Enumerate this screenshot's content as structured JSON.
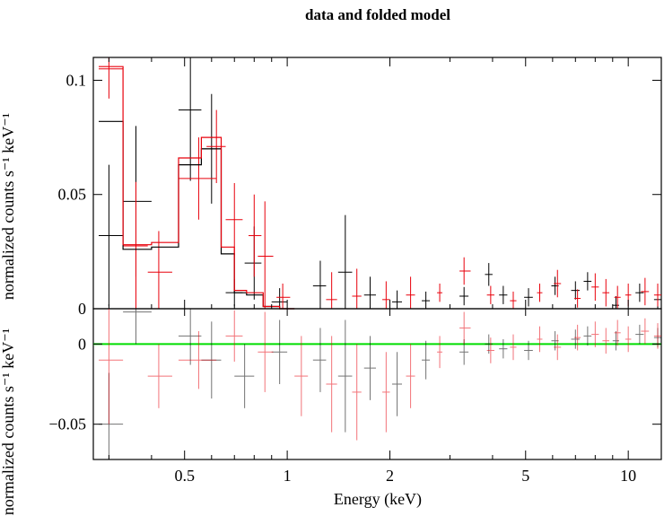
{
  "chart_data": {
    "type": "scatter",
    "title": "data and folded model",
    "xlabel": "Energy (keV)",
    "ylabel": "normalized counts s⁻¹ keV⁻¹",
    "xscale": "log",
    "xlim": [
      0.27,
      12.5
    ],
    "x_ticks": [
      0.5,
      1,
      2,
      5,
      10
    ],
    "x_tick_labels": [
      "0.5",
      "1",
      "2",
      "5",
      "10"
    ],
    "grid": false,
    "colors": {
      "black_spectrum": "#000000",
      "red_spectrum": "#e8000b",
      "residual_zero_line": "#00dd00",
      "background": "#ffffff"
    },
    "panels": [
      {
        "name": "spectrum",
        "ylim": [
          0,
          0.11
        ],
        "y_ticks": [
          0,
          0.05,
          0.1
        ],
        "y_tick_labels": [
          "0",
          "0.05",
          "0.1"
        ],
        "series": [
          {
            "kind": "data",
            "color": "black",
            "points": [
              {
                "x": 0.3,
                "x_lo": 0.28,
                "x_hi": 0.33,
                "y": 0.032,
                "yerr": 0.031
              },
              {
                "x": 0.36,
                "x_lo": 0.33,
                "x_hi": 0.4,
                "y": 0.047,
                "yerr": 0.033
              },
              {
                "x": 0.52,
                "x_lo": 0.48,
                "x_hi": 0.56,
                "y": 0.087,
                "yerr": 0.031
              },
              {
                "x": 0.6,
                "x_lo": 0.56,
                "x_hi": 0.64,
                "y": 0.07,
                "yerr": 0.024
              },
              {
                "x": 0.7,
                "x_lo": 0.66,
                "x_hi": 0.74,
                "y": 0.007,
                "yerr": 0.006
              },
              {
                "x": 0.8,
                "x_lo": 0.75,
                "x_hi": 0.84,
                "y": 0.02,
                "yerr": 0.016
              },
              {
                "x": 0.95,
                "x_lo": 0.9,
                "x_hi": 1.0,
                "y": 0.003,
                "yerr": 0.006
              },
              {
                "x": 1.25,
                "x_lo": 1.19,
                "x_hi": 1.3,
                "y": 0.01,
                "yerr": 0.011
              },
              {
                "x": 1.48,
                "x_lo": 1.41,
                "x_hi": 1.55,
                "y": 0.016,
                "yerr": 0.025
              },
              {
                "x": 1.75,
                "x_lo": 1.68,
                "x_hi": 1.82,
                "y": 0.006,
                "yerr": 0.008
              },
              {
                "x": 2.1,
                "x_lo": 2.03,
                "x_hi": 2.17,
                "y": 0.003,
                "yerr": 0.005
              },
              {
                "x": 2.55,
                "x_lo": 2.48,
                "x_hi": 2.62,
                "y": 0.0035,
                "yerr": 0.004
              },
              {
                "x": 3.3,
                "x_lo": 3.2,
                "x_hi": 3.4,
                "y": 0.0055,
                "yerr": 0.004
              },
              {
                "x": 3.9,
                "x_lo": 3.8,
                "x_hi": 4.0,
                "y": 0.015,
                "yerr": 0.005
              },
              {
                "x": 4.3,
                "x_lo": 4.18,
                "x_hi": 4.42,
                "y": 0.006,
                "yerr": 0.004
              },
              {
                "x": 5.1,
                "x_lo": 4.95,
                "x_hi": 5.25,
                "y": 0.005,
                "yerr": 0.004
              },
              {
                "x": 6.1,
                "x_lo": 5.95,
                "x_hi": 6.25,
                "y": 0.01,
                "yerr": 0.004
              },
              {
                "x": 7.0,
                "x_lo": 6.8,
                "x_hi": 7.2,
                "y": 0.008,
                "yerr": 0.004
              },
              {
                "x": 7.6,
                "x_lo": 7.4,
                "x_hi": 7.8,
                "y": 0.012,
                "yerr": 0.004
              },
              {
                "x": 9.2,
                "x_lo": 9.0,
                "x_hi": 9.4,
                "y": 0.0015,
                "yerr": 0.004
              },
              {
                "x": 10.8,
                "x_lo": 10.5,
                "x_hi": 11.1,
                "y": 0.007,
                "yerr": 0.004
              },
              {
                "x": 12.2,
                "x_lo": 11.9,
                "x_hi": 12.5,
                "y": 0.004,
                "yerr": 0.004
              }
            ]
          },
          {
            "kind": "data",
            "color": "red",
            "points": [
              {
                "x": 0.3,
                "x_lo": 0.28,
                "x_hi": 0.33,
                "y": 0.105,
                "yerr": 0.013
              },
              {
                "x": 0.36,
                "x_lo": 0.33,
                "x_hi": 0.39,
                "y": 0.0275,
                "yerr": 0.028
              },
              {
                "x": 0.42,
                "x_lo": 0.39,
                "x_hi": 0.46,
                "y": 0.016,
                "yerr": 0.018
              },
              {
                "x": 0.55,
                "x_lo": 0.48,
                "x_hi": 0.62,
                "y": 0.057,
                "yerr": 0.018
              },
              {
                "x": 0.62,
                "x_lo": 0.58,
                "x_hi": 0.66,
                "y": 0.071,
                "yerr": 0.016
              },
              {
                "x": 0.7,
                "x_lo": 0.66,
                "x_hi": 0.74,
                "y": 0.039,
                "yerr": 0.016
              },
              {
                "x": 0.8,
                "x_lo": 0.77,
                "x_hi": 0.84,
                "y": 0.032,
                "yerr": 0.018
              },
              {
                "x": 0.86,
                "x_lo": 0.82,
                "x_hi": 0.91,
                "y": 0.023,
                "yerr": 0.024
              },
              {
                "x": 0.97,
                "x_lo": 0.93,
                "x_hi": 1.02,
                "y": 0.005,
                "yerr": 0.006
              },
              {
                "x": 1.35,
                "x_lo": 1.3,
                "x_hi": 1.4,
                "y": 0.004,
                "yerr": 0.012
              },
              {
                "x": 1.6,
                "x_lo": 1.55,
                "x_hi": 1.65,
                "y": 0.0055,
                "yerr": 0.012
              },
              {
                "x": 1.95,
                "x_lo": 1.9,
                "x_hi": 2.0,
                "y": 0.004,
                "yerr": 0.008
              },
              {
                "x": 2.3,
                "x_lo": 2.23,
                "x_hi": 2.37,
                "y": 0.006,
                "yerr": 0.008
              },
              {
                "x": 2.8,
                "x_lo": 2.75,
                "x_hi": 2.85,
                "y": 0.007,
                "yerr": 0.004
              },
              {
                "x": 3.3,
                "x_lo": 3.2,
                "x_hi": 3.45,
                "y": 0.0165,
                "yerr": 0.006
              },
              {
                "x": 3.95,
                "x_lo": 3.85,
                "x_hi": 4.05,
                "y": 0.006,
                "yerr": 0.004
              },
              {
                "x": 4.6,
                "x_lo": 4.5,
                "x_hi": 4.7,
                "y": 0.0035,
                "yerr": 0.004
              },
              {
                "x": 5.5,
                "x_lo": 5.4,
                "x_hi": 5.6,
                "y": 0.007,
                "yerr": 0.004
              },
              {
                "x": 6.2,
                "x_lo": 6.05,
                "x_hi": 6.35,
                "y": 0.011,
                "yerr": 0.006
              },
              {
                "x": 7.1,
                "x_lo": 6.95,
                "x_hi": 7.25,
                "y": 0.0045,
                "yerr": 0.004
              },
              {
                "x": 8.0,
                "x_lo": 7.8,
                "x_hi": 8.2,
                "y": 0.0095,
                "yerr": 0.006
              },
              {
                "x": 8.6,
                "x_lo": 8.4,
                "x_hi": 8.8,
                "y": 0.007,
                "yerr": 0.006
              },
              {
                "x": 9.3,
                "x_lo": 9.1,
                "x_hi": 9.5,
                "y": 0.005,
                "yerr": 0.005
              },
              {
                "x": 10.0,
                "x_lo": 9.8,
                "x_hi": 10.2,
                "y": 0.006,
                "yerr": 0.005
              },
              {
                "x": 11.2,
                "x_lo": 10.9,
                "x_hi": 11.5,
                "y": 0.0075,
                "yerr": 0.006
              },
              {
                "x": 12.2,
                "x_lo": 11.9,
                "x_hi": 12.5,
                "y": 0.006,
                "yerr": 0.005
              }
            ]
          },
          {
            "kind": "model",
            "color": "black",
            "edges": [
              0.28,
              0.33,
              0.4,
              0.48,
              0.56,
              0.64,
              0.7,
              0.76,
              0.85,
              0.95,
              1.05
            ],
            "values": [
              0.082,
              0.026,
              0.027,
              0.063,
              0.07,
              0.024,
              0.007,
              0.006,
              0.001,
              0.0
            ]
          },
          {
            "kind": "model",
            "color": "red",
            "edges": [
              0.28,
              0.33,
              0.4,
              0.48,
              0.56,
              0.64,
              0.7,
              0.76,
              0.85,
              0.95,
              1.05
            ],
            "values": [
              0.106,
              0.028,
              0.029,
              0.066,
              0.075,
              0.027,
              0.008,
              0.007,
              0.001,
              0.0
            ]
          }
        ]
      },
      {
        "name": "residuals",
        "ylim": [
          -0.072,
          0.022
        ],
        "y_ticks": [
          -0.05,
          0
        ],
        "y_tick_labels": [
          "−0.05",
          "0"
        ],
        "zero_line": 0,
        "series": [
          {
            "kind": "data",
            "color": "black",
            "points": [
              {
                "x": 0.3,
                "x_lo": 0.28,
                "x_hi": 0.33,
                "y": -0.05,
                "yerr": 0.032
              },
              {
                "x": 0.36,
                "x_lo": 0.33,
                "x_hi": 0.4,
                "y": 0.02,
                "yerr": 0.02
              },
              {
                "x": 0.52,
                "x_lo": 0.48,
                "x_hi": 0.56,
                "y": 0.005,
                "yerr": 0.018
              },
              {
                "x": 0.6,
                "x_lo": 0.56,
                "x_hi": 0.64,
                "y": -0.01,
                "yerr": 0.024
              },
              {
                "x": 0.75,
                "x_lo": 0.7,
                "x_hi": 0.8,
                "y": -0.02,
                "yerr": 0.02
              },
              {
                "x": 0.95,
                "x_lo": 0.9,
                "x_hi": 1.0,
                "y": -0.005,
                "yerr": 0.02
              },
              {
                "x": 1.25,
                "x_lo": 1.19,
                "x_hi": 1.3,
                "y": -0.01,
                "yerr": 0.02
              },
              {
                "x": 1.48,
                "x_lo": 1.41,
                "x_hi": 1.55,
                "y": -0.02,
                "yerr": 0.035
              },
              {
                "x": 1.75,
                "x_lo": 1.68,
                "x_hi": 1.82,
                "y": -0.015,
                "yerr": 0.02
              },
              {
                "x": 2.1,
                "x_lo": 2.03,
                "x_hi": 2.17,
                "y": -0.025,
                "yerr": 0.02
              },
              {
                "x": 2.55,
                "x_lo": 2.48,
                "x_hi": 2.62,
                "y": -0.01,
                "yerr": 0.012
              },
              {
                "x": 3.3,
                "x_lo": 3.2,
                "x_hi": 3.4,
                "y": -0.005,
                "yerr": 0.008
              },
              {
                "x": 3.9,
                "x_lo": 3.8,
                "x_hi": 4.0,
                "y": 0.0,
                "yerr": 0.006
              },
              {
                "x": 4.3,
                "x_lo": 4.18,
                "x_hi": 4.42,
                "y": -0.003,
                "yerr": 0.006
              },
              {
                "x": 5.1,
                "x_lo": 4.95,
                "x_hi": 5.25,
                "y": -0.004,
                "yerr": 0.006
              },
              {
                "x": 6.1,
                "x_lo": 5.95,
                "x_hi": 6.25,
                "y": 0.002,
                "yerr": 0.006
              },
              {
                "x": 7.0,
                "x_lo": 6.8,
                "x_hi": 7.2,
                "y": 0.003,
                "yerr": 0.006
              },
              {
                "x": 7.6,
                "x_lo": 7.4,
                "x_hi": 7.8,
                "y": 0.005,
                "yerr": 0.006
              },
              {
                "x": 9.2,
                "x_lo": 9.0,
                "x_hi": 9.4,
                "y": 0.002,
                "yerr": 0.006
              },
              {
                "x": 10.8,
                "x_lo": 10.5,
                "x_hi": 11.1,
                "y": 0.006,
                "yerr": 0.006
              },
              {
                "x": 12.2,
                "x_lo": 11.9,
                "x_hi": 12.5,
                "y": 0.004,
                "yerr": 0.006
              }
            ]
          },
          {
            "kind": "data",
            "color": "red",
            "points": [
              {
                "x": 0.3,
                "x_lo": 0.28,
                "x_hi": 0.33,
                "y": -0.01,
                "yerr": 0.04
              },
              {
                "x": 0.42,
                "x_lo": 0.39,
                "x_hi": 0.46,
                "y": -0.02,
                "yerr": 0.02
              },
              {
                "x": 0.55,
                "x_lo": 0.48,
                "x_hi": 0.62,
                "y": -0.01,
                "yerr": 0.018
              },
              {
                "x": 0.7,
                "x_lo": 0.66,
                "x_hi": 0.74,
                "y": 0.005,
                "yerr": 0.016
              },
              {
                "x": 0.86,
                "x_lo": 0.82,
                "x_hi": 0.91,
                "y": -0.005,
                "yerr": 0.025
              },
              {
                "x": 1.1,
                "x_lo": 1.05,
                "x_hi": 1.15,
                "y": -0.02,
                "yerr": 0.025
              },
              {
                "x": 1.35,
                "x_lo": 1.3,
                "x_hi": 1.4,
                "y": -0.025,
                "yerr": 0.03
              },
              {
                "x": 1.6,
                "x_lo": 1.55,
                "x_hi": 1.65,
                "y": -0.03,
                "yerr": 0.03
              },
              {
                "x": 1.95,
                "x_lo": 1.9,
                "x_hi": 2.0,
                "y": -0.03,
                "yerr": 0.025
              },
              {
                "x": 2.3,
                "x_lo": 2.23,
                "x_hi": 2.37,
                "y": -0.02,
                "yerr": 0.02
              },
              {
                "x": 2.8,
                "x_lo": 2.75,
                "x_hi": 2.85,
                "y": -0.005,
                "yerr": 0.01
              },
              {
                "x": 3.3,
                "x_lo": 3.2,
                "x_hi": 3.45,
                "y": 0.01,
                "yerr": 0.01
              },
              {
                "x": 3.95,
                "x_lo": 3.85,
                "x_hi": 4.05,
                "y": -0.004,
                "yerr": 0.008
              },
              {
                "x": 4.6,
                "x_lo": 4.5,
                "x_hi": 4.7,
                "y": -0.002,
                "yerr": 0.008
              },
              {
                "x": 5.5,
                "x_lo": 5.4,
                "x_hi": 5.6,
                "y": 0.003,
                "yerr": 0.008
              },
              {
                "x": 6.2,
                "x_lo": 6.05,
                "x_hi": 6.35,
                "y": -0.002,
                "yerr": 0.008
              },
              {
                "x": 7.1,
                "x_lo": 6.95,
                "x_hi": 7.25,
                "y": 0.004,
                "yerr": 0.008
              },
              {
                "x": 8.0,
                "x_lo": 7.8,
                "x_hi": 8.2,
                "y": 0.006,
                "yerr": 0.008
              },
              {
                "x": 8.6,
                "x_lo": 8.4,
                "x_hi": 8.8,
                "y": 0.002,
                "yerr": 0.008
              },
              {
                "x": 9.3,
                "x_lo": 9.1,
                "x_hi": 9.5,
                "y": 0.007,
                "yerr": 0.008
              },
              {
                "x": 10.0,
                "x_lo": 9.8,
                "x_hi": 10.2,
                "y": 0.003,
                "yerr": 0.008
              },
              {
                "x": 11.2,
                "x_lo": 10.9,
                "x_hi": 11.5,
                "y": 0.008,
                "yerr": 0.008
              },
              {
                "x": 12.2,
                "x_lo": 11.9,
                "x_hi": 12.5,
                "y": 0.005,
                "yerr": 0.008
              }
            ]
          }
        ]
      }
    ]
  }
}
